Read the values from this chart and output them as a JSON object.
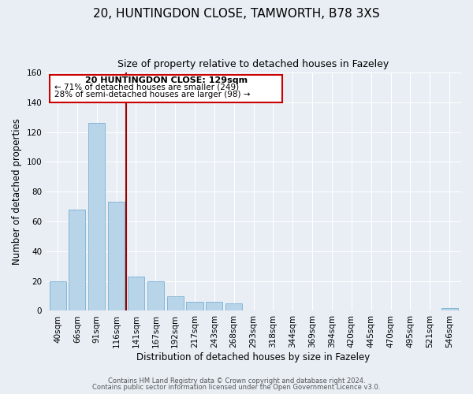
{
  "title": "20, HUNTINGDON CLOSE, TAMWORTH, B78 3XS",
  "subtitle": "Size of property relative to detached houses in Fazeley",
  "xlabel": "Distribution of detached houses by size in Fazeley",
  "ylabel": "Number of detached properties",
  "bar_labels": [
    "40sqm",
    "66sqm",
    "91sqm",
    "116sqm",
    "141sqm",
    "167sqm",
    "192sqm",
    "217sqm",
    "243sqm",
    "268sqm",
    "293sqm",
    "318sqm",
    "344sqm",
    "369sqm",
    "394sqm",
    "420sqm",
    "445sqm",
    "470sqm",
    "495sqm",
    "521sqm",
    "546sqm"
  ],
  "bar_values": [
    20,
    68,
    126,
    73,
    23,
    20,
    10,
    6,
    6,
    5,
    0,
    0,
    0,
    0,
    0,
    0,
    0,
    0,
    0,
    0,
    2
  ],
  "bar_color": "#b8d4e8",
  "bar_edge_color": "#7aafd4",
  "ylim": [
    0,
    160
  ],
  "yticks": [
    0,
    20,
    40,
    60,
    80,
    100,
    120,
    140,
    160
  ],
  "property_line_color": "#990000",
  "annotation_title": "20 HUNTINGDON CLOSE: 129sqm",
  "annotation_line1": "← 71% of detached houses are smaller (249)",
  "annotation_line2": "28% of semi-detached houses are larger (98) →",
  "annotation_box_color": "#ffffff",
  "annotation_box_edge": "#cc0000",
  "footer1": "Contains HM Land Registry data © Crown copyright and database right 2024.",
  "footer2": "Contains public sector information licensed under the Open Government Licence v3.0.",
  "background_color": "#e8eef4",
  "plot_background": "#e8eef4"
}
